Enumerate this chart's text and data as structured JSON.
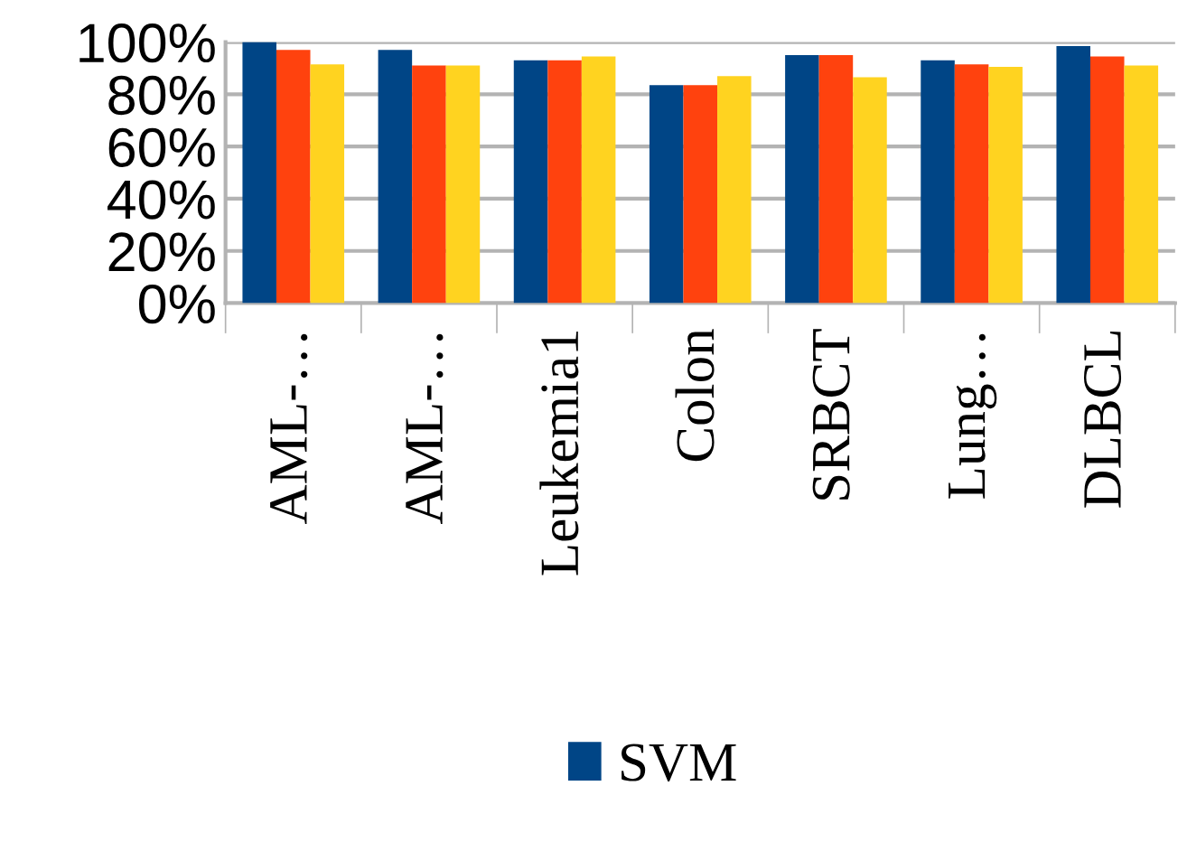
{
  "chart_data": {
    "type": "bar",
    "categories": [
      "AML-…",
      "AML-…",
      "Leukemia1",
      "Colon",
      "SRBCT",
      "Lung…",
      "DLBCL"
    ],
    "series": [
      {
        "name": "SVM",
        "color": "#004586",
        "values": [
          100,
          97,
          93,
          83.5,
          95,
          93,
          98.5
        ]
      },
      {
        "color": "#ff420e",
        "values": [
          97,
          91,
          93,
          83.5,
          95,
          91.5,
          94.5
        ]
      },
      {
        "color": "#ffd320",
        "values": [
          91.5,
          91,
          94.5,
          87,
          86.5,
          90.5,
          91
        ]
      }
    ],
    "ylim": [
      0,
      100
    ],
    "yticks": [
      {
        "value": 0,
        "label": "0%"
      },
      {
        "value": 20,
        "label": "20%"
      },
      {
        "value": 40,
        "label": "40%"
      },
      {
        "value": 60,
        "label": "60%"
      },
      {
        "value": 80,
        "label": "80%"
      },
      {
        "value": 100,
        "label": "100%"
      }
    ],
    "grid": "y",
    "legend": "bottom"
  }
}
